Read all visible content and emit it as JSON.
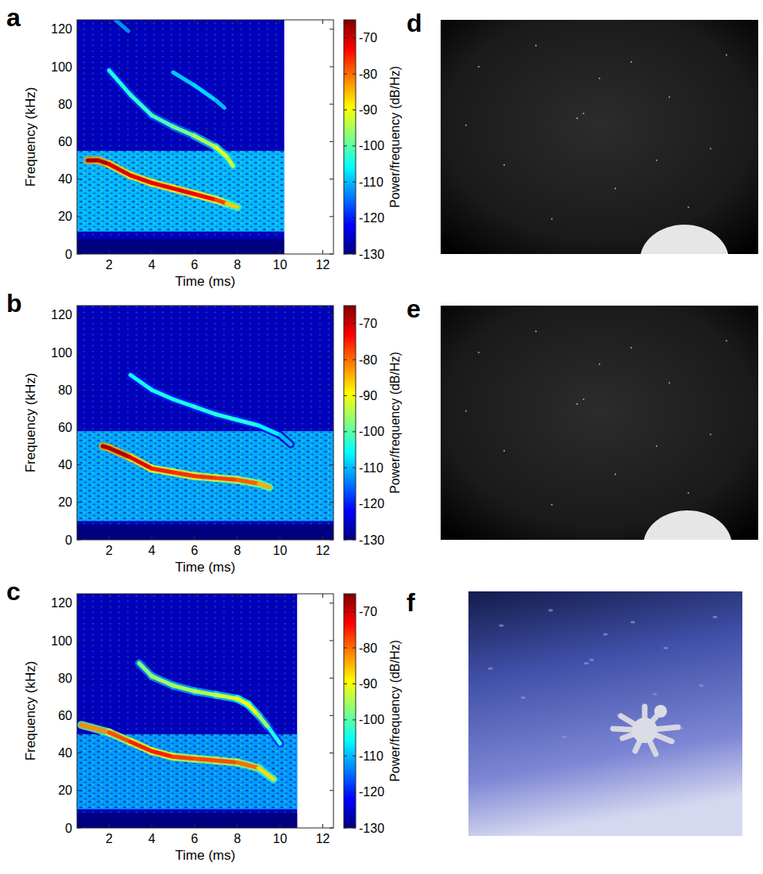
{
  "chart_data": [
    {
      "panel": "a",
      "type": "spectrogram",
      "x_label": "Time (ms)",
      "y_label": "Frequency (kHz)",
      "xlim": [
        0.5,
        12.5
      ],
      "ylim": [
        0,
        125
      ],
      "xticks": [
        2,
        4,
        6,
        8,
        10,
        12
      ],
      "yticks": [
        0,
        20,
        40,
        60,
        80,
        100,
        120
      ],
      "time_range": [
        0.5,
        10.2
      ],
      "background_power": -126,
      "floor_band": {
        "frequency": [
          0,
          8
        ],
        "power": -130
      },
      "noise_band": {
        "frequency": [
          12,
          55
        ],
        "power": -110
      },
      "series": [
        {
          "x": [
            1.0,
            1.5,
            2,
            3,
            4,
            5,
            6,
            7,
            7.5,
            8
          ],
          "values": [
            50,
            50,
            48,
            42,
            38,
            35,
            32,
            29,
            27,
            25
          ],
          "power": [
            -68,
            -66,
            -70,
            -72,
            -72,
            -72,
            -72,
            -74,
            -80,
            -92
          ]
        },
        {
          "x": [
            2,
            3,
            4,
            5,
            6,
            7,
            7.5,
            7.8
          ],
          "values": [
            98,
            85,
            74,
            68,
            63,
            57,
            52,
            47
          ],
          "power": [
            -104,
            -103,
            -102,
            -100,
            -97,
            -92,
            -90,
            -95
          ]
        },
        {
          "x": [
            5,
            6,
            7,
            7.4
          ],
          "values": [
            97,
            90,
            82,
            78
          ],
          "power": [
            -110,
            -108,
            -108,
            -112
          ]
        },
        {
          "x": [
            2.3,
            2.9
          ],
          "values": [
            125,
            119
          ],
          "power": [
            -112,
            -114
          ]
        }
      ],
      "colorbar": {
        "label": "Power/frequency (dB/Hz)",
        "lim": [
          -130,
          -65
        ],
        "ticks": [
          -70,
          -80,
          -90,
          -100,
          -110,
          -120,
          -130
        ]
      }
    },
    {
      "panel": "b",
      "type": "spectrogram",
      "x_label": "Time (ms)",
      "y_label": "Frequency (kHz)",
      "xlim": [
        0.5,
        12.5
      ],
      "ylim": [
        0,
        125
      ],
      "xticks": [
        2,
        4,
        6,
        8,
        10,
        12
      ],
      "yticks": [
        0,
        20,
        40,
        60,
        80,
        100,
        120
      ],
      "time_range": [
        0.5,
        12.5
      ],
      "background_power": -126,
      "floor_band": {
        "frequency": [
          0,
          8
        ],
        "power": -130
      },
      "noise_band": {
        "frequency": [
          10,
          58
        ],
        "power": -111
      },
      "series": [
        {
          "x": [
            1.7,
            2,
            3,
            4,
            5,
            6,
            7,
            8,
            9,
            9.5
          ],
          "values": [
            50,
            49,
            44,
            38,
            36,
            34,
            33,
            32,
            30,
            28
          ],
          "power": [
            -68,
            -66,
            -70,
            -74,
            -76,
            -76,
            -76,
            -78,
            -80,
            -88
          ]
        },
        {
          "x": [
            3,
            4,
            5,
            6,
            7,
            8,
            9,
            10,
            10.5
          ],
          "values": [
            88,
            80,
            75,
            71,
            67,
            64,
            61,
            56,
            51
          ],
          "power": [
            -105,
            -104,
            -104,
            -104,
            -103,
            -103,
            -104,
            -108,
            -112
          ]
        }
      ],
      "colorbar": {
        "label": "Power/frequency (dB/Hz)",
        "lim": [
          -130,
          -65
        ],
        "ticks": [
          -70,
          -80,
          -90,
          -100,
          -110,
          -120,
          -130
        ]
      }
    },
    {
      "panel": "c",
      "type": "spectrogram",
      "x_label": "Time (ms)",
      "y_label": "Frequency (kHz)",
      "xlim": [
        0.5,
        12.5
      ],
      "ylim": [
        0,
        125
      ],
      "xticks": [
        2,
        4,
        6,
        8,
        10,
        12
      ],
      "yticks": [
        0,
        20,
        40,
        60,
        80,
        100,
        120
      ],
      "time_range": [
        0.5,
        10.8
      ],
      "background_power": -126,
      "floor_band": {
        "frequency": [
          0,
          8
        ],
        "power": -130
      },
      "noise_band": {
        "frequency": [
          10,
          50
        ],
        "power": -112
      },
      "series": [
        {
          "x": [
            0.7,
            2,
            3,
            4,
            5,
            6,
            7,
            8,
            9,
            9.7
          ],
          "values": [
            55,
            51,
            46,
            41,
            38,
            37,
            36,
            35,
            32,
            26
          ],
          "power": [
            -84,
            -80,
            -76,
            -74,
            -76,
            -78,
            -78,
            -78,
            -82,
            -92
          ]
        },
        {
          "x": [
            3.4,
            4,
            5,
            6,
            7,
            8,
            8.5,
            9,
            9.5,
            10
          ],
          "values": [
            88,
            81,
            76,
            73,
            71,
            69,
            66,
            60,
            53,
            45
          ],
          "power": [
            -98,
            -96,
            -95,
            -95,
            -94,
            -90,
            -88,
            -92,
            -100,
            -108
          ]
        }
      ],
      "colorbar": {
        "label": "Power/frequency (dB/Hz)",
        "lim": [
          -130,
          -65
        ],
        "ticks": [
          -70,
          -80,
          -90,
          -100,
          -110,
          -120,
          -130
        ]
      }
    }
  ],
  "images": [
    {
      "panel": "d"
    },
    {
      "panel": "e"
    },
    {
      "panel": "f"
    }
  ]
}
